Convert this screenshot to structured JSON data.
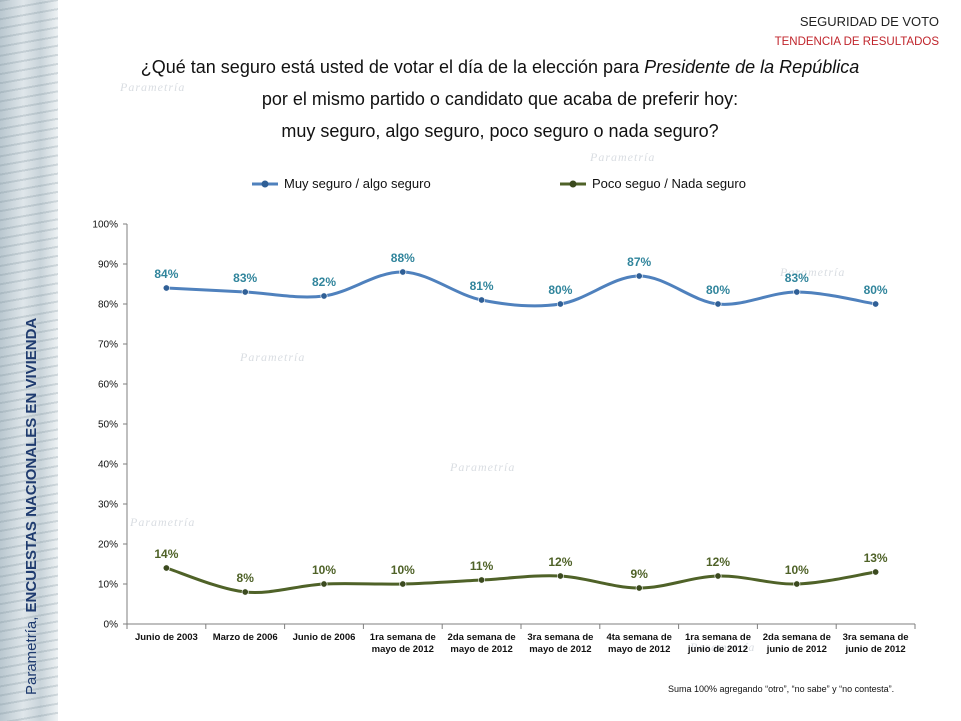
{
  "header": {
    "title": "SEGURIDAD DE VOTO",
    "subtitle": "TENDENCIA DE RESULTADOS"
  },
  "question": {
    "line1_pre": "¿Qué tan seguro está usted de votar el día de la elección para ",
    "line1_italic": "Presidente de la República",
    "line2": "por el mismo partido o candidato que acaba de preferir hoy:",
    "line3": "muy seguro, algo seguro, poco seguro o nada seguro?"
  },
  "side_label": {
    "prefix": "Parametría, ",
    "bold": "ENCUESTAS NACIONALES EN VIVIENDA"
  },
  "watermark": "Parametría",
  "footnote": "Suma 100% agregando “otro”, “no sabe” y “no contesta”.",
  "colors": {
    "series1": "#4f81bd",
    "series1_label": "#31859c",
    "series2": "#4f6228",
    "axis": "#7f7f7f",
    "header_red": "#c0242b"
  },
  "chart_data": {
    "type": "line",
    "categories": [
      [
        "Junio de 2003"
      ],
      [
        "Marzo de 2006"
      ],
      [
        "Junio de 2006"
      ],
      [
        "1ra semana de",
        "mayo de 2012"
      ],
      [
        "2da semana de",
        "mayo de 2012"
      ],
      [
        "3ra semana de",
        "mayo de 2012"
      ],
      [
        "4ta semana de",
        "mayo de 2012"
      ],
      [
        "1ra semana de",
        "junio de 2012"
      ],
      [
        "2da semana de",
        "junio de 2012"
      ],
      [
        "3ra semana de",
        "junio de 2012"
      ]
    ],
    "series": [
      {
        "name": "Muy seguro / algo seguro",
        "values": [
          84,
          83,
          82,
          88,
          81,
          80,
          87,
          80,
          83,
          80
        ],
        "labels": [
          "84%",
          "83%",
          "82%",
          "88%",
          "81%",
          "80%",
          "87%",
          "80%",
          "83%",
          "80%"
        ]
      },
      {
        "name": "Poco seguo / Nada seguro",
        "values": [
          14,
          8,
          10,
          10,
          11,
          12,
          9,
          12,
          10,
          13
        ],
        "labels": [
          "14%",
          "8%",
          "10%",
          "10%",
          "11%",
          "12%",
          "9%",
          "12%",
          "10%",
          "13%"
        ]
      }
    ],
    "ylim": [
      0,
      100
    ],
    "yticks": [
      "0%",
      "10%",
      "20%",
      "30%",
      "40%",
      "50%",
      "60%",
      "70%",
      "80%",
      "90%",
      "100%"
    ],
    "smooth": true,
    "legend_position": "top",
    "grid": false
  }
}
